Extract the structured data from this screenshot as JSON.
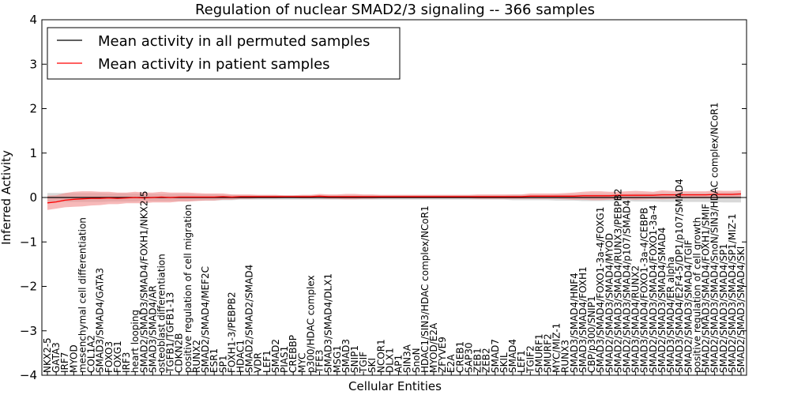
{
  "chart_data": {
    "type": "line",
    "title": "Regulation of nuclear SMAD2/3 signaling -- 366 samples",
    "xlabel": "Cellular Entities",
    "ylabel": "Inferred Activity",
    "ylim": [
      -4,
      4
    ],
    "yticks": [
      -4,
      -3,
      -2,
      -1,
      0,
      1,
      2,
      3,
      4
    ],
    "ytick_labels": [
      "−4",
      "−3",
      "−2",
      "−1",
      "0",
      "1",
      "2",
      "3",
      "4"
    ],
    "legend_position": "top-left",
    "colors": {
      "permuted": "#000000",
      "patient": "#ff0000",
      "patient_band": "#f28b8b",
      "permuted_band": "#c8c8c8"
    },
    "categories": [
      "NKX2-5",
      "GATA3",
      "IRF7",
      "MYOD",
      "mesenchymal cell differentiation",
      "COL1A2",
      "SMAD3/SMAD4/GATA3",
      "FOXO3",
      "FOXG1",
      "IRF3",
      "heart looping",
      "SMAD2/SMAD3/SMAD4/FOXH1/NKX2-5",
      "SMAD3/SMAD4/AR",
      "osteoblast differentiation",
      "TGFB1/TGFB1-13",
      "CDKN2B",
      "positive regulation of cell migration",
      "RUNX2",
      "SMAD2/SMAD4/MEF2C",
      "ESR1",
      "SP1",
      "FOXH1-3/PEBPB2",
      "HDAC1",
      "SMAD2/SMAD2/SMAD4",
      "VDR",
      "LEF1",
      "SMAD2",
      "PIAS1",
      "CREBBP",
      "MYC",
      "p300/HDAC complex",
      "TFE3",
      "SMAD3/SMAD4/DLX1",
      "MSG1",
      "SMAD3",
      "SNIP1",
      "TGIF",
      "SKI",
      "NCOR1",
      "DLX1",
      "AP1",
      "SIN3A",
      "SnoN",
      "HDAC1/SIN3/HDAC complex/NCoR1",
      "MYOD/E2A",
      "ZFYVE9",
      "E2A",
      "CREB1",
      "SAP30",
      "ZEB1",
      "ZEB2",
      "SMAD7",
      "SKIL",
      "SMAD4",
      "LEF1",
      "TGIF2",
      "SMURF1",
      "SMURF2",
      "MYC/MIZ-1",
      "RUNX3",
      "SMAD3/SMAD4/HNF4",
      "SMAD3/SMAD4/FOXH1",
      "CBP/p300/SNIP1",
      "SMAD3/SMAD4/FOXO1-3a-4/FOXG1",
      "SMAD2/SMAD3/SMAD4/MYOD",
      "SMAD2/SMAD3/SMAD4/RUNX3/PEBPB2",
      "SMAD2/SMAD3/SMAD4/p107/SMAD4",
      "SMAD3/SMAD4/RUNX2",
      "SMAD3/SMAD4/FOXO1-3a-4/CEBPB",
      "SMAD2/SMAD3/SMAD4/FOXO1-3a-4",
      "SMAD2/SMAD3/SMAD4/SMAD4",
      "SMAD3/SMAD4/ER alpha",
      "SMAD3/SMAD4/E2F4-5/DP1/p107/SMAD4",
      "SMAD2/SMAD3/SMAD4/TGIF",
      "positive regulation of cell growth",
      "SMAD2/SMAD3/SMAD4/FOXH1/SMIF",
      "SMAD2/SMAD3/SMAD4/SnoN/SIN3/HDAC complex/NCoR1",
      "SMAD2/SMAD3/SMAD4/SP1",
      "SMAD2/SMAD3/SMAD4/SP1/MIZ-1",
      "SMAD2/SMAD3/SMAD4/SKI"
    ],
    "series": [
      {
        "name": "Mean activity in all permuted samples",
        "values": [
          0,
          0,
          0,
          0,
          0,
          0,
          0,
          0,
          0,
          0,
          0,
          0,
          0,
          0,
          0,
          0,
          0,
          0,
          0,
          0,
          0,
          0,
          0,
          0,
          0,
          0,
          0,
          0,
          0,
          0,
          0,
          0,
          0,
          0,
          0,
          0,
          0,
          0,
          0,
          0,
          0,
          0,
          0,
          0,
          0,
          0,
          0,
          0,
          0,
          0,
          0,
          0,
          0,
          0,
          0,
          0,
          0,
          0,
          0,
          0,
          0,
          0,
          0,
          0,
          0,
          0,
          0,
          0,
          0,
          0,
          0,
          0,
          0,
          0,
          0,
          0,
          0,
          0,
          0,
          0
        ]
      },
      {
        "name": "Mean activity in patient samples",
        "values": [
          -0.12,
          -0.1,
          -0.06,
          -0.04,
          -0.03,
          -0.02,
          -0.02,
          -0.01,
          -0.02,
          -0.01,
          0,
          -0.01,
          0,
          0.01,
          0,
          0.01,
          0.01,
          0.01,
          0.01,
          0.01,
          0.02,
          0.01,
          0.02,
          0.02,
          0.02,
          0.02,
          0.02,
          0.02,
          0.02,
          0.02,
          0.02,
          0.03,
          0.02,
          0.02,
          0.02,
          0.02,
          0.02,
          0.02,
          0.02,
          0.02,
          0.02,
          0.02,
          0.02,
          0.02,
          0.02,
          0.02,
          0.02,
          0.02,
          0.02,
          0.02,
          0.02,
          0.02,
          0.02,
          0.02,
          0.02,
          0.03,
          0.03,
          0.03,
          0.03,
          0.03,
          0.03,
          0.04,
          0.04,
          0.04,
          0.04,
          0.05,
          0.05,
          0.05,
          0.05,
          0.05,
          0.06,
          0.06,
          0.06,
          0.06,
          0.06,
          0.06,
          0.07,
          0.07,
          0.07,
          0.08
        ]
      }
    ],
    "patient_band_halfwidth": [
      0.16,
      0.15,
      0.16,
      0.17,
      0.17,
      0.16,
      0.15,
      0.14,
      0.13,
      0.12,
      0.13,
      0.12,
      0.11,
      0.12,
      0.11,
      0.1,
      0.1,
      0.09,
      0.08,
      0.08,
      0.07,
      0.06,
      0.05,
      0.05,
      0.04,
      0.04,
      0.04,
      0.03,
      0.03,
      0.04,
      0.04,
      0.05,
      0.05,
      0.05,
      0.06,
      0.06,
      0.05,
      0.05,
      0.04,
      0.04,
      0.04,
      0.04,
      0.04,
      0.04,
      0.04,
      0.04,
      0.04,
      0.04,
      0.04,
      0.05,
      0.05,
      0.05,
      0.05,
      0.05,
      0.05,
      0.06,
      0.06,
      0.06,
      0.06,
      0.07,
      0.08,
      0.09,
      0.1,
      0.1,
      0.09,
      0.08,
      0.09,
      0.1,
      0.09,
      0.08,
      0.1,
      0.09,
      0.08,
      0.08,
      0.08,
      0.08,
      0.09,
      0.08,
      0.08,
      0.08
    ],
    "permuted_band_halfwidth": [
      0.1,
      0.1,
      0.1,
      0.1,
      0.1,
      0.1,
      0.1,
      0.09,
      0.09,
      0.09,
      0.09,
      0.08,
      0.08,
      0.08,
      0.08,
      0.08,
      0.08,
      0.07,
      0.07,
      0.07,
      0.06,
      0.06,
      0.05,
      0.05,
      0.05,
      0.05,
      0.05,
      0.05,
      0.05,
      0.05,
      0.05,
      0.05,
      0.05,
      0.05,
      0.05,
      0.05,
      0.05,
      0.05,
      0.05,
      0.05,
      0.05,
      0.05,
      0.05,
      0.05,
      0.05,
      0.05,
      0.05,
      0.05,
      0.05,
      0.05,
      0.05,
      0.05,
      0.05,
      0.06,
      0.06,
      0.06,
      0.06,
      0.06,
      0.07,
      0.07,
      0.07,
      0.08,
      0.08,
      0.08,
      0.08,
      0.08,
      0.08,
      0.09,
      0.09,
      0.09,
      0.1,
      0.1,
      0.1,
      0.1,
      0.1,
      0.1,
      0.1,
      0.11,
      0.11,
      0.11
    ]
  }
}
